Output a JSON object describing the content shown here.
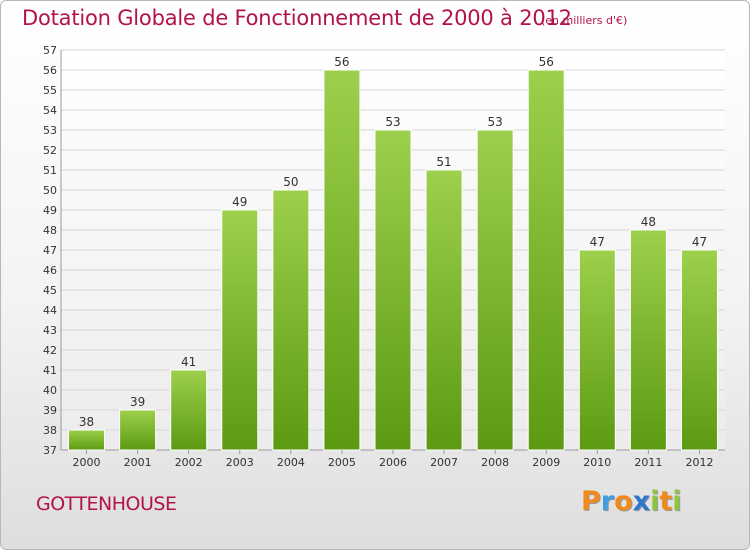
{
  "chart_data": {
    "type": "bar",
    "title": "Dotation Globale de Fonctionnement de 2000 à 2012",
    "subtitle": "(en milliers d'€)",
    "categories": [
      "2000",
      "2001",
      "2002",
      "2003",
      "2004",
      "2005",
      "2006",
      "2007",
      "2008",
      "2009",
      "2010",
      "2011",
      "2012"
    ],
    "values": [
      38,
      39,
      41,
      49,
      50,
      56,
      53,
      51,
      53,
      56,
      47,
      48,
      47
    ],
    "data_labels": [
      "38",
      "39",
      "41",
      "49",
      "50",
      "56",
      "53",
      "51",
      "53",
      "56",
      "47",
      "48",
      "47"
    ],
    "ylim": [
      37,
      57
    ],
    "yticks": [
      "37",
      "38",
      "39",
      "40",
      "41",
      "42",
      "43",
      "44",
      "45",
      "46",
      "47",
      "48",
      "49",
      "50",
      "51",
      "52",
      "53",
      "54",
      "55",
      "56",
      "57"
    ],
    "xlabel": "",
    "ylabel": "",
    "grid": true,
    "bar_color_top": "#9dd04c",
    "bar_color_bottom": "#5c9a12"
  },
  "footer": {
    "commune": "GOTTENHOUSE",
    "brand_letters": [
      "P",
      "r",
      "o",
      "x",
      "i",
      "t",
      "i"
    ],
    "brand_colors": [
      "#f08a1c",
      "#3f9de0",
      "#f08a1c",
      "#2e77c9",
      "#8cc63f",
      "#f08a1c",
      "#8cc63f"
    ]
  }
}
